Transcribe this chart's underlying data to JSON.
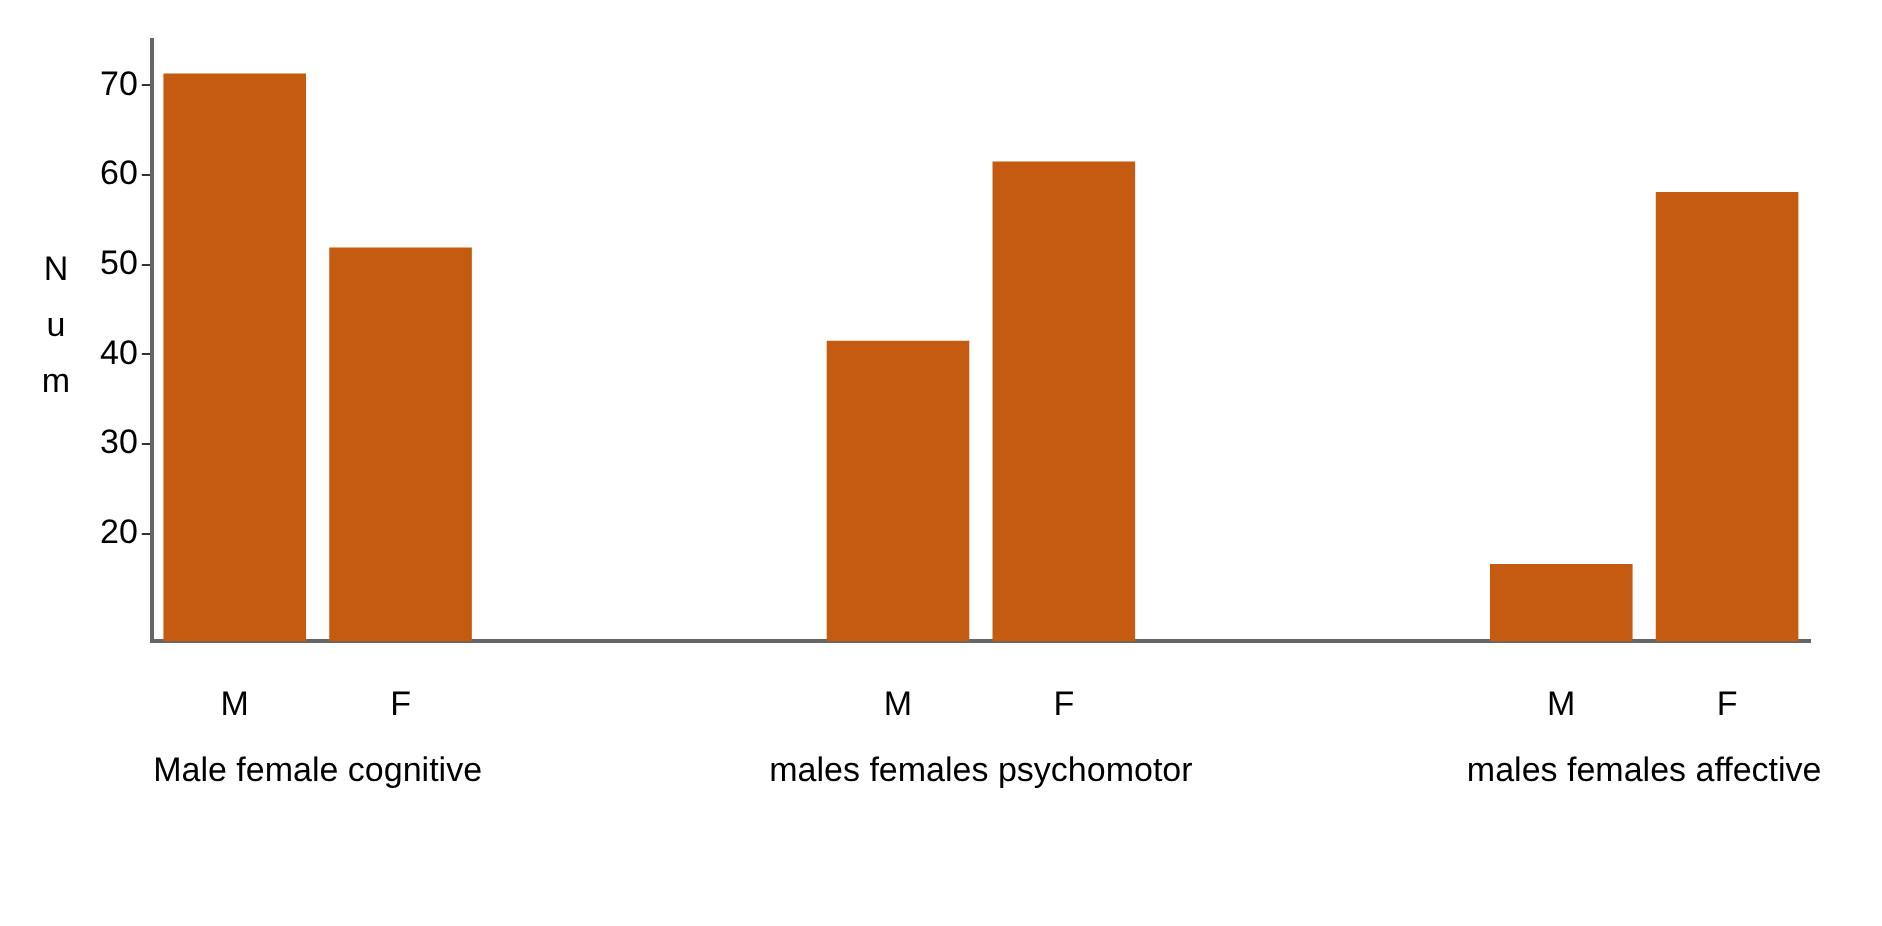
{
  "chart_data": {
    "type": "bar",
    "ylabel": "Num",
    "categories": [
      "M",
      "F",
      null,
      null,
      "M",
      "F",
      null,
      null,
      "M",
      "F"
    ],
    "values": [
      71.3,
      51.9,
      null,
      null,
      41.5,
      61.5,
      null,
      null,
      16.6,
      58.1
    ],
    "color": "#c55a11",
    "ylim": [
      8,
      75
    ],
    "yticks": [
      20,
      30,
      40,
      50,
      60,
      70
    ],
    "grid": false,
    "legend": false,
    "annotations": [
      "Male female cognitive",
      "males females psychomotor",
      "males females affective"
    ]
  }
}
